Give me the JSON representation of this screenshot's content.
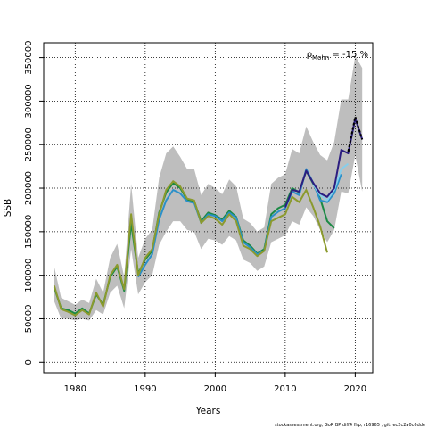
{
  "chart_data": {
    "type": "line",
    "xlabel": "Years",
    "ylabel": "SSB",
    "xlim": [
      1975.5,
      2022.5
    ],
    "ylim": [
      -12000,
      367000
    ],
    "xticks": [
      1980,
      1990,
      2000,
      2010,
      2020
    ],
    "yticks": [
      0,
      50000,
      100000,
      150000,
      200000,
      250000,
      300000,
      350000
    ],
    "grid": true,
    "annotation": {
      "prefix": "ρ",
      "subscript": "Mohn",
      "value": " = -15 %"
    },
    "footer": "stockassessment.org, GoR BP diff4 fhp, r16965 , git: ec2c2a0c6dde",
    "ci_band": {
      "color": "#bebebe",
      "years": [
        1977,
        1978,
        1979,
        1980,
        1981,
        1982,
        1983,
        1984,
        1985,
        1986,
        1987,
        1988,
        1989,
        1990,
        1991,
        1992,
        1993,
        1994,
        1995,
        1996,
        1997,
        1998,
        1999,
        2000,
        2001,
        2002,
        2003,
        2004,
        2005,
        2006,
        2007,
        2008,
        2009,
        2010,
        2011,
        2012,
        2013,
        2014,
        2015,
        2016,
        2017,
        2018,
        2019,
        2020,
        2021
      ],
      "lower": [
        70000,
        50000,
        50000,
        48000,
        50000,
        48000,
        60000,
        55000,
        80000,
        88000,
        62000,
        130000,
        78000,
        92000,
        100000,
        135000,
        150000,
        162000,
        162000,
        152000,
        150000,
        130000,
        142000,
        140000,
        135000,
        145000,
        140000,
        118000,
        114000,
        105000,
        110000,
        138000,
        142000,
        146000,
        162000,
        158000,
        178000,
        168000,
        152000,
        138000,
        152000,
        196000,
        194000,
        238000,
        196000
      ],
      "upper": [
        110000,
        74000,
        70000,
        66000,
        72000,
        68000,
        96000,
        80000,
        120000,
        136000,
        98000,
        205000,
        120000,
        142000,
        152000,
        212000,
        240000,
        248000,
        236000,
        222000,
        222000,
        192000,
        205000,
        200000,
        193000,
        210000,
        202000,
        165000,
        160000,
        150000,
        155000,
        205000,
        212000,
        216000,
        245000,
        240000,
        271000,
        253000,
        238000,
        232000,
        253000,
        302000,
        302000,
        352000,
        338000
      ]
    },
    "series": [
      {
        "color": "#1a8a44",
        "years": [
          1977,
          1978,
          1979,
          1980,
          1981,
          1982,
          1983,
          1984,
          1985,
          1986,
          1987,
          1988,
          1989,
          1990,
          1991,
          1992,
          1993,
          1994,
          1995,
          1996,
          1997,
          1998,
          1999,
          2000,
          2001,
          2002,
          2003,
          2004,
          2005,
          2006,
          2007,
          2008,
          2009,
          2010,
          2011,
          2012,
          2013,
          2014,
          2015,
          2016,
          2017
        ],
        "values": [
          86000,
          62000,
          60000,
          56000,
          62000,
          56000,
          78000,
          66000,
          98000,
          110000,
          82000,
          160000,
          102000,
          118000,
          128000,
          172000,
          195000,
          206000,
          200000,
          187000,
          185000,
          162000,
          172000,
          169000,
          164000,
          174000,
          167000,
          140000,
          134000,
          125000,
          130000,
          170000,
          177000,
          181000,
          200000,
          195000,
          220000,
          205000,
          188000,
          162000,
          154000
        ]
      },
      {
        "color": "#2b90c9",
        "years": [
          1989,
          1990,
          1991,
          1992,
          1993,
          1994,
          1995,
          1996,
          1997,
          1998,
          1999,
          2000,
          2001,
          2002,
          2003,
          2004,
          2005,
          2006,
          2007,
          2008,
          2009,
          2010,
          2011,
          2012,
          2013,
          2014,
          2015,
          2016,
          2017,
          2018
        ],
        "values": [
          98000,
          112000,
          124000,
          164000,
          186000,
          198000,
          194000,
          185000,
          183000,
          160000,
          170000,
          168000,
          162000,
          172000,
          166000,
          138000,
          132000,
          124000,
          128000,
          167000,
          173000,
          177000,
          196000,
          192000,
          222000,
          206000,
          186000,
          184000,
          194000,
          216000
        ]
      },
      {
        "color": "#87ceeb",
        "years": [
          2014,
          2015,
          2016,
          2017,
          2018,
          2019
        ],
        "values": [
          204000,
          192000,
          186000,
          198000,
          222000,
          228000
        ]
      },
      {
        "color": "#2c1e80",
        "years": [
          2010,
          2011,
          2012,
          2013,
          2014,
          2015,
          2016,
          2017,
          2018,
          2019,
          2020,
          2021
        ],
        "values": [
          178000,
          198000,
          196000,
          220000,
          206000,
          194000,
          190000,
          200000,
          244000,
          240000,
          280000,
          256000
        ]
      },
      {
        "color": "#000000",
        "dashed": true,
        "years": [
          2019,
          2020,
          2021
        ],
        "values": [
          242000,
          282000,
          256000
        ]
      },
      {
        "color": "#8b9a2e",
        "years": [
          1977,
          1978,
          1979,
          1980,
          1981,
          1982,
          1983,
          1984,
          1985,
          1986,
          1987,
          1988,
          1989,
          1990,
          1991,
          1992,
          1993,
          1994,
          1995,
          1996,
          1997,
          1998,
          1999,
          2000,
          2001,
          2002,
          2003,
          2004,
          2005,
          2006,
          2007,
          2008,
          2009,
          2010,
          2011,
          2012,
          2013,
          2014,
          2015,
          2016
        ],
        "values": [
          88000,
          61000,
          58000,
          54000,
          60000,
          55000,
          80000,
          64000,
          100000,
          112000,
          84000,
          170000,
          100000,
          120000,
          130000,
          170000,
          198000,
          208000,
          202000,
          188000,
          186000,
          160000,
          168000,
          165000,
          158000,
          170000,
          162000,
          134000,
          130000,
          122000,
          128000,
          162000,
          166000,
          170000,
          190000,
          184000,
          198000,
          178000,
          156000,
          126000
        ]
      }
    ]
  }
}
